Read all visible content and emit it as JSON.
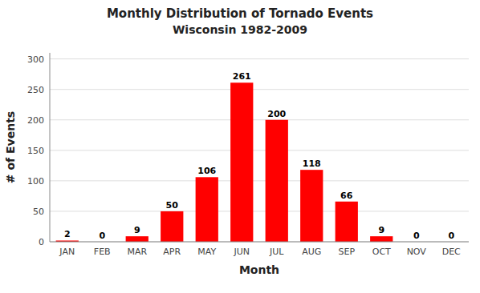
{
  "chart_data": {
    "type": "bar",
    "title": "Monthly Distribution of Tornado Events",
    "subtitle": "Wisconsin 1982-2009",
    "xlabel": "Month",
    "ylabel": "# of Events",
    "categories": [
      "JAN",
      "FEB",
      "MAR",
      "APR",
      "MAY",
      "JUN",
      "JUL",
      "AUG",
      "SEP",
      "OCT",
      "NOV",
      "DEC"
    ],
    "values": [
      2,
      0,
      9,
      50,
      106,
      261,
      200,
      118,
      66,
      9,
      0,
      0
    ],
    "color": "#FF0000",
    "ylim": [
      0,
      310
    ],
    "yticks": [
      0,
      50,
      100,
      150,
      200,
      250,
      300
    ],
    "grid": true,
    "data_labels": true
  }
}
